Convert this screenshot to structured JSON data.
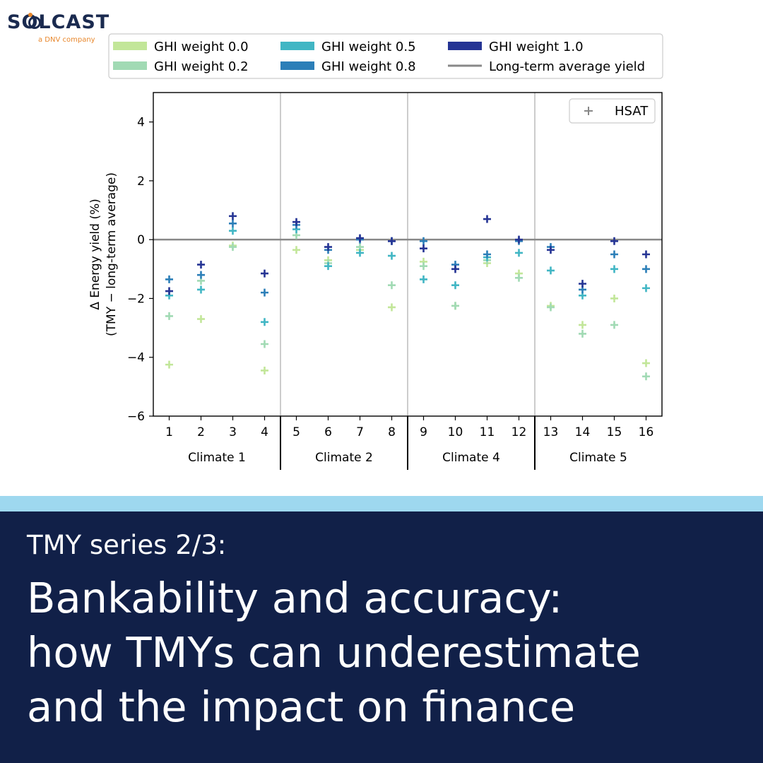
{
  "brand": {
    "name": "SOLCAST",
    "tagline": "a DNV company"
  },
  "banner": {
    "series_label": "TMY series 2/3:",
    "headline_lines": [
      "Bankability and accuracy:",
      "how TMYs can underestimate",
      "and the impact on finance"
    ]
  },
  "chart_data": {
    "type": "scatter",
    "marker": "+",
    "ylabel_lines": [
      "Δ Energy yield (%)",
      "(TMY − long-term average)"
    ],
    "ylim": [
      -6,
      5
    ],
    "yticks": [
      -6,
      -4,
      -2,
      0,
      2,
      4
    ],
    "ytick_labels": [
      "−6",
      "−4",
      "−2",
      "0",
      "2",
      "4"
    ],
    "x": [
      1,
      2,
      3,
      4,
      5,
      6,
      7,
      8,
      9,
      10,
      11,
      12,
      13,
      14,
      15,
      16
    ],
    "groups": [
      {
        "name": "Climate 1",
        "x": [
          1,
          2,
          3,
          4
        ]
      },
      {
        "name": "Climate 2",
        "x": [
          5,
          6,
          7,
          8
        ]
      },
      {
        "name": "Climate 4",
        "x": [
          9,
          10,
          11,
          12
        ]
      },
      {
        "name": "Climate 5",
        "x": [
          13,
          14,
          15,
          16
        ]
      }
    ],
    "reference_line": {
      "name": "Long-term average yield",
      "y": 0,
      "color": "#888888"
    },
    "marker_legend": {
      "label": "HSAT",
      "symbol": "+",
      "position": "top-right"
    },
    "legend_position": "top, above plot",
    "grid": false,
    "series": [
      {
        "name": "GHI weight 0.0",
        "color": "#c2e699",
        "values": [
          -4.25,
          -2.7,
          -0.2,
          -4.45,
          -0.35,
          -0.7,
          -0.35,
          -2.3,
          -0.75,
          -2.25,
          -0.8,
          -1.15,
          -2.25,
          -2.9,
          -2.0,
          -4.2
        ]
      },
      {
        "name": "GHI weight 0.2",
        "color": "#a1dab4",
        "values": [
          -2.6,
          -1.4,
          -0.25,
          -3.55,
          0.15,
          -0.8,
          -0.25,
          -1.55,
          -0.9,
          -2.25,
          -0.7,
          -1.3,
          -2.3,
          -3.2,
          -2.9,
          -4.65
        ]
      },
      {
        "name": "GHI weight 0.5",
        "color": "#41b6c4",
        "values": [
          -1.9,
          -1.7,
          0.3,
          -2.8,
          0.35,
          -0.9,
          -0.45,
          -0.55,
          -1.35,
          -1.55,
          -0.6,
          -0.45,
          -1.05,
          -1.9,
          -1.0,
          -1.65
        ]
      },
      {
        "name": "GHI weight 0.8",
        "color": "#2c7fb8",
        "values": [
          -1.35,
          -1.2,
          0.55,
          -1.8,
          0.5,
          -0.35,
          0.0,
          -0.05,
          -0.05,
          -0.85,
          -0.5,
          -0.05,
          -0.25,
          -1.7,
          -0.5,
          -1.0
        ]
      },
      {
        "name": "GHI weight 1.0",
        "color": "#253494",
        "values": [
          -1.75,
          -0.85,
          0.8,
          -1.15,
          0.6,
          -0.25,
          0.05,
          -0.05,
          -0.3,
          -1.0,
          0.7,
          0.0,
          -0.35,
          -1.5,
          -0.05,
          -0.5
        ]
      }
    ]
  }
}
